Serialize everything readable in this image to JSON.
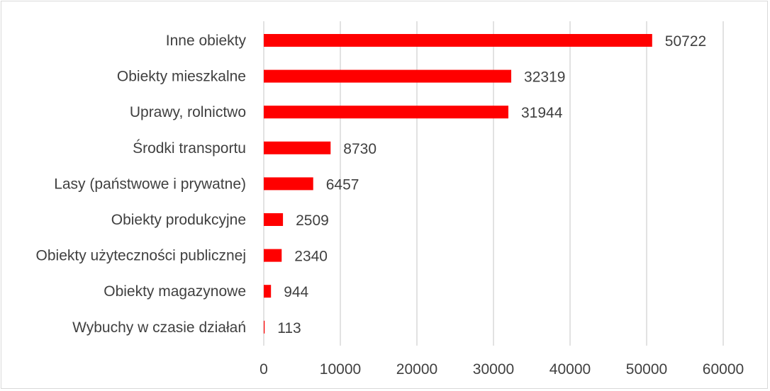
{
  "chart_data": {
    "type": "bar",
    "orientation": "horizontal",
    "title": "",
    "xlabel": "",
    "ylabel": "",
    "categories": [
      "Inne obiekty",
      "Obiekty mieszkalne",
      "Uprawy, rolnictwo",
      "Środki transportu",
      "Lasy (państwowe i prywatne)",
      "Obiekty produkcyjne",
      "Obiekty użyteczności publicznej",
      "Obiekty magazynowe",
      "Wybuchy w czasie działań"
    ],
    "values": [
      50722,
      32319,
      31944,
      8730,
      6457,
      2509,
      2340,
      944,
      113
    ],
    "data_labels": [
      "50722",
      "32319",
      "31944",
      "8730",
      "6457",
      "2509",
      "2340",
      "944",
      "113"
    ],
    "xlim": [
      0,
      60000
    ],
    "x_ticks": [
      "0",
      "10000",
      "20000",
      "30000",
      "40000",
      "50000",
      "60000"
    ],
    "x_tick_values": [
      0,
      10000,
      20000,
      30000,
      40000,
      50000,
      60000
    ],
    "grid": true,
    "legend": "none",
    "bar_color": "#ff0000"
  }
}
